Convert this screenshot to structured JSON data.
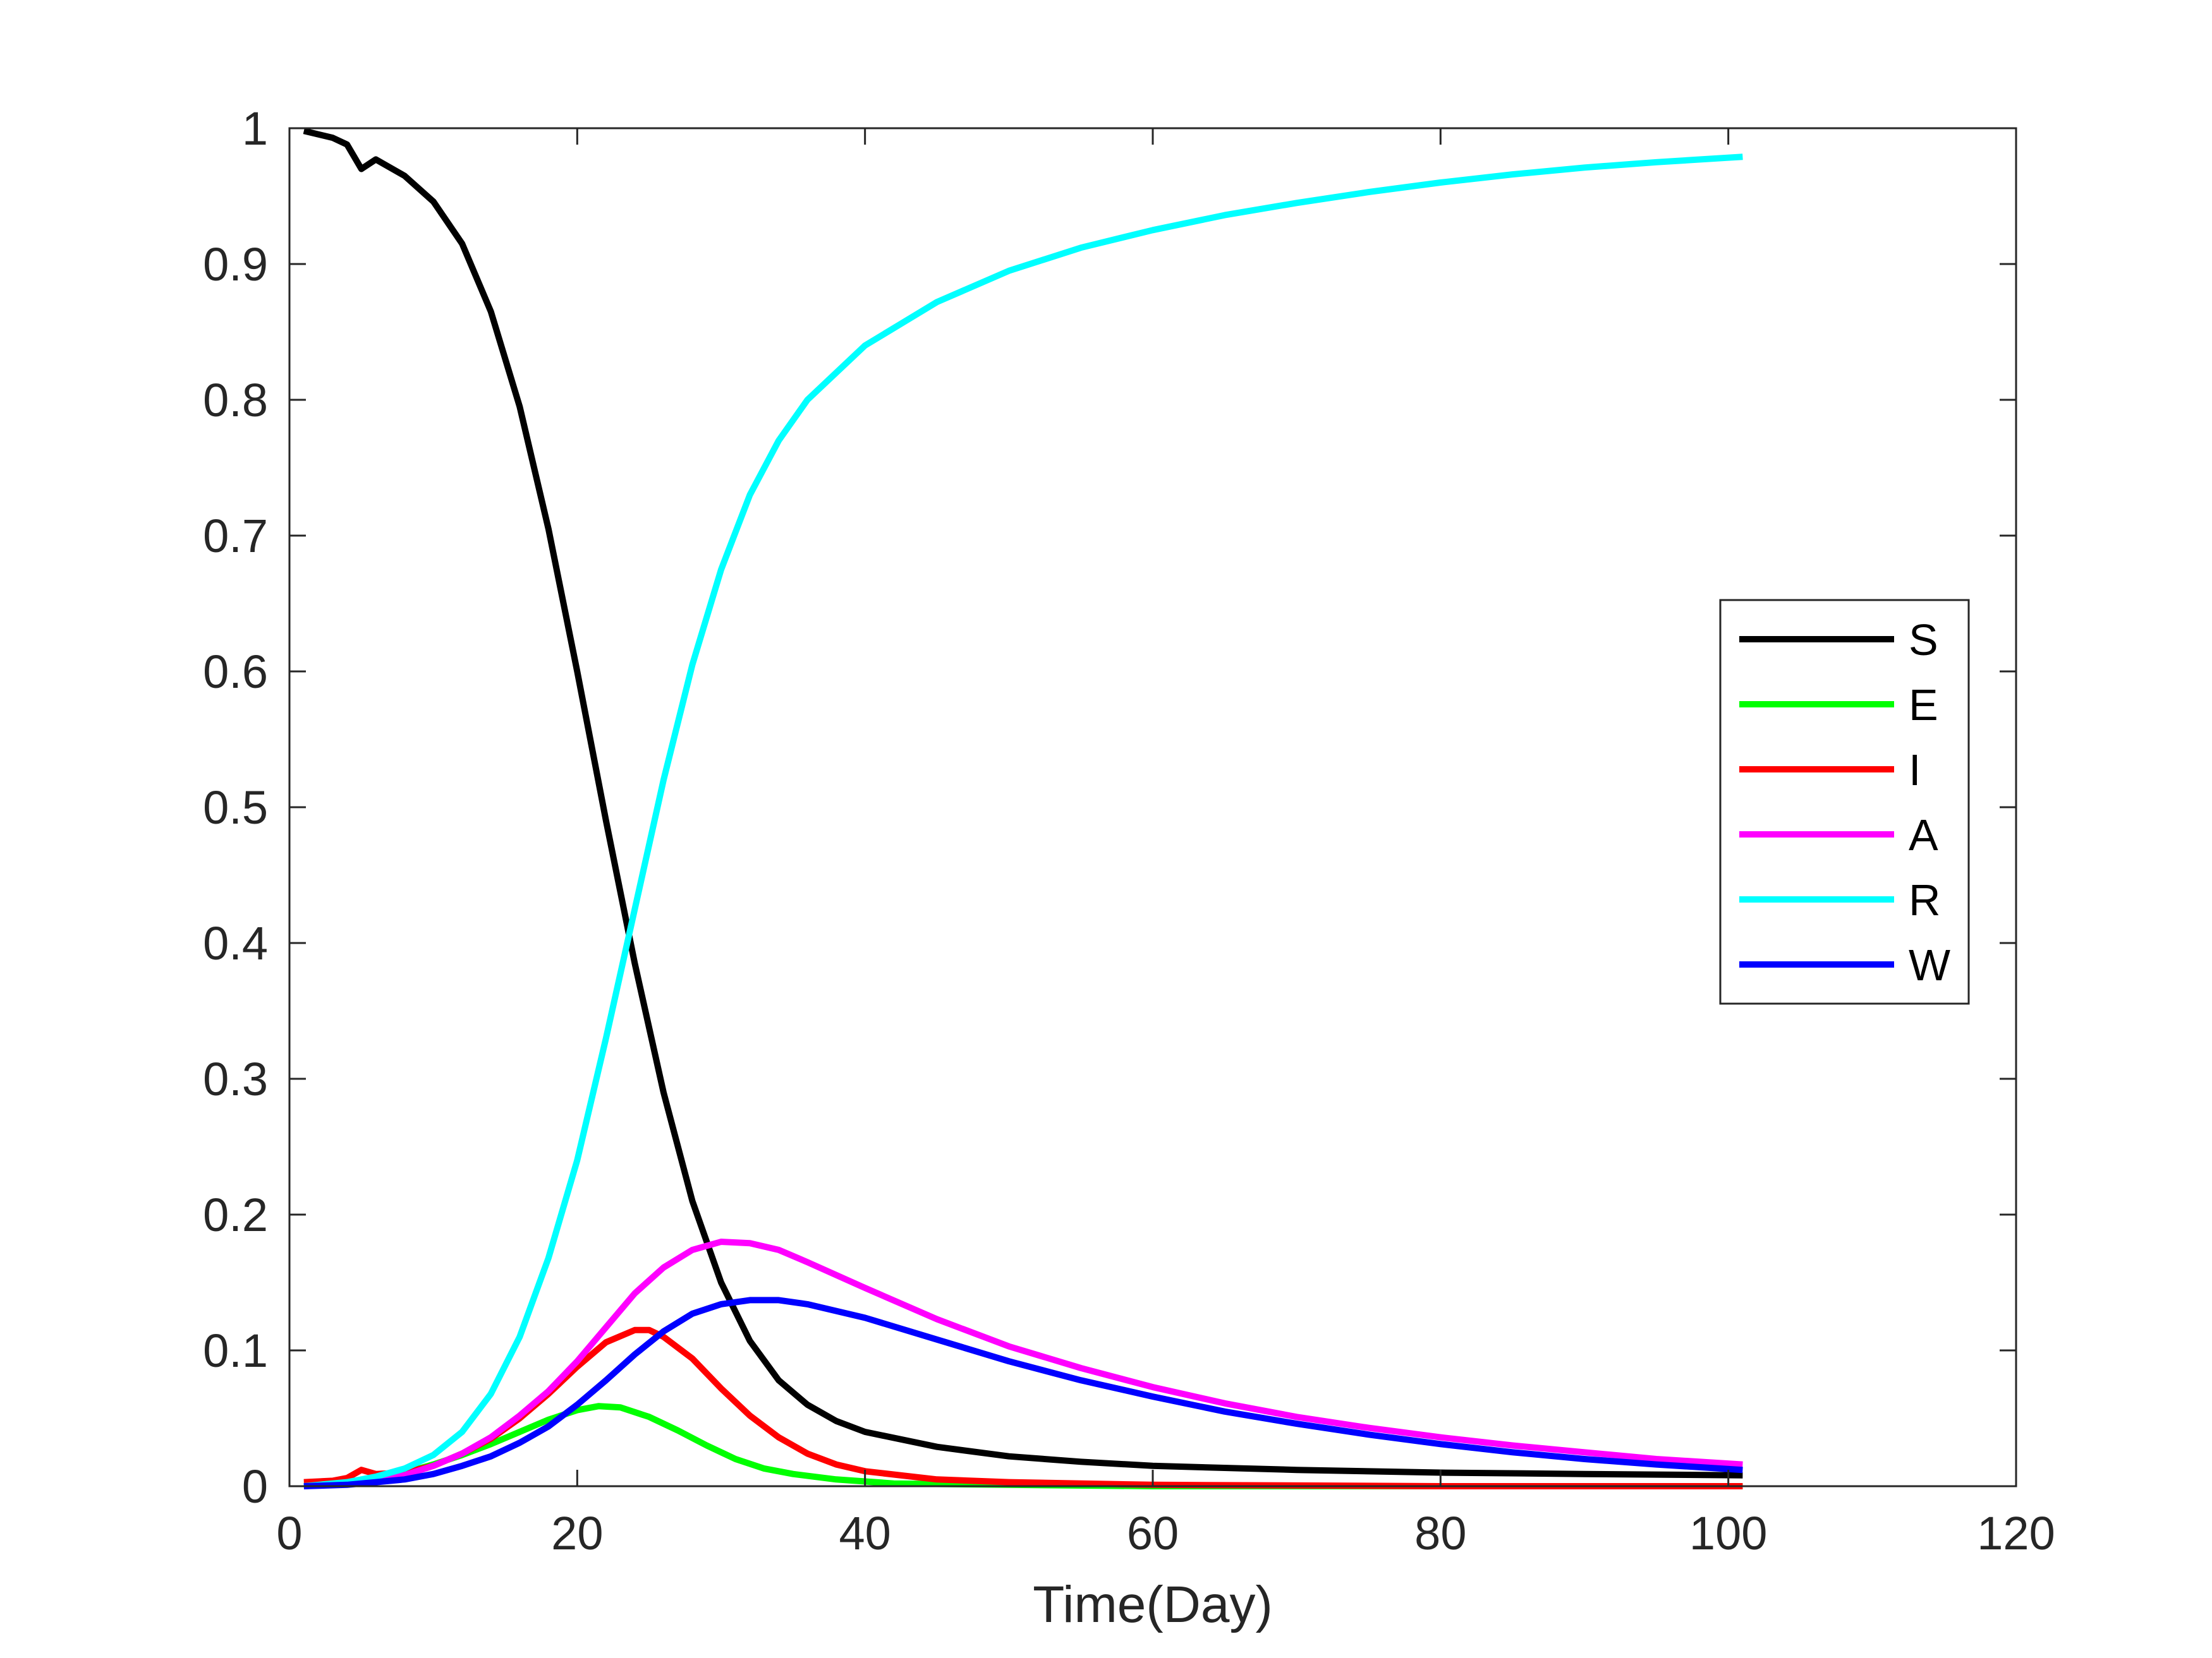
{
  "chart_data": {
    "type": "line",
    "title": "",
    "xlabel": "Time(Day)",
    "ylabel": "",
    "xlim": [
      0,
      120
    ],
    "ylim": [
      0,
      1
    ],
    "xticks": [
      0,
      20,
      40,
      60,
      80,
      100,
      120
    ],
    "yticks": [
      0,
      0.1,
      0.2,
      0.3,
      0.4,
      0.5,
      0.6,
      0.7,
      0.8,
      0.9,
      1
    ],
    "x_tick_labels": [
      "0",
      "20",
      "40",
      "60",
      "80",
      "100",
      "120"
    ],
    "y_tick_labels": [
      "0",
      "0.1",
      "0.2",
      "0.3",
      "0.4",
      "0.5",
      "0.6",
      "0.7",
      "0.8",
      "0.9",
      "1"
    ],
    "grid": false,
    "legend_position": "right",
    "series": [
      {
        "name": "S",
        "color": "#000000",
        "points": [
          [
            1,
            0.998
          ],
          [
            3,
            0.993
          ],
          [
            4,
            0.988
          ],
          [
            5,
            0.97
          ],
          [
            6,
            0.977
          ],
          [
            8,
            0.965
          ],
          [
            10,
            0.946
          ],
          [
            12,
            0.915
          ],
          [
            14,
            0.865
          ],
          [
            16,
            0.795
          ],
          [
            18,
            0.705
          ],
          [
            20,
            0.6
          ],
          [
            22,
            0.49
          ],
          [
            24,
            0.385
          ],
          [
            26,
            0.29
          ],
          [
            28,
            0.21
          ],
          [
            30,
            0.15
          ],
          [
            32,
            0.107
          ],
          [
            34,
            0.078
          ],
          [
            36,
            0.06
          ],
          [
            38,
            0.048
          ],
          [
            40,
            0.04
          ],
          [
            45,
            0.029
          ],
          [
            50,
            0.022
          ],
          [
            55,
            0.018
          ],
          [
            60,
            0.015
          ],
          [
            70,
            0.012
          ],
          [
            80,
            0.01
          ],
          [
            90,
            0.009
          ],
          [
            101,
            0.008
          ]
        ]
      },
      {
        "name": "E",
        "color": "#00ff00",
        "points": [
          [
            1,
            0.0
          ],
          [
            4,
            0.002
          ],
          [
            6,
            0.005
          ],
          [
            8,
            0.01
          ],
          [
            10,
            0.016
          ],
          [
            12,
            0.023
          ],
          [
            14,
            0.031
          ],
          [
            16,
            0.04
          ],
          [
            18,
            0.049
          ],
          [
            20,
            0.056
          ],
          [
            21.5,
            0.059
          ],
          [
            23,
            0.058
          ],
          [
            25,
            0.051
          ],
          [
            27,
            0.041
          ],
          [
            29,
            0.03
          ],
          [
            31,
            0.02
          ],
          [
            33,
            0.013
          ],
          [
            35,
            0.009
          ],
          [
            38,
            0.005
          ],
          [
            42,
            0.002
          ],
          [
            50,
            0.001
          ],
          [
            60,
            0.0
          ],
          [
            101,
            0.0
          ]
        ]
      },
      {
        "name": "I",
        "color": "#ff0000",
        "points": [
          [
            1,
            0.003
          ],
          [
            3,
            0.004
          ],
          [
            4,
            0.006
          ],
          [
            5,
            0.012
          ],
          [
            6,
            0.009
          ],
          [
            8,
            0.01
          ],
          [
            10,
            0.015
          ],
          [
            12,
            0.024
          ],
          [
            14,
            0.035
          ],
          [
            16,
            0.05
          ],
          [
            18,
            0.068
          ],
          [
            20,
            0.088
          ],
          [
            22,
            0.106
          ],
          [
            24,
            0.115
          ],
          [
            25,
            0.115
          ],
          [
            26,
            0.11
          ],
          [
            28,
            0.094
          ],
          [
            30,
            0.072
          ],
          [
            32,
            0.052
          ],
          [
            34,
            0.036
          ],
          [
            36,
            0.024
          ],
          [
            38,
            0.016
          ],
          [
            40,
            0.011
          ],
          [
            45,
            0.005
          ],
          [
            50,
            0.003
          ],
          [
            60,
            0.001
          ],
          [
            80,
            0.0
          ],
          [
            101,
            0.0
          ]
        ]
      },
      {
        "name": "A",
        "color": "#ff00ff",
        "points": [
          [
            1,
            0.0
          ],
          [
            4,
            0.002
          ],
          [
            6,
            0.004
          ],
          [
            8,
            0.008
          ],
          [
            10,
            0.015
          ],
          [
            12,
            0.024
          ],
          [
            14,
            0.036
          ],
          [
            16,
            0.052
          ],
          [
            18,
            0.07
          ],
          [
            20,
            0.092
          ],
          [
            22,
            0.117
          ],
          [
            24,
            0.142
          ],
          [
            26,
            0.161
          ],
          [
            28,
            0.174
          ],
          [
            30,
            0.18
          ],
          [
            32,
            0.179
          ],
          [
            34,
            0.174
          ],
          [
            36,
            0.165
          ],
          [
            40,
            0.146
          ],
          [
            45,
            0.123
          ],
          [
            50,
            0.103
          ],
          [
            55,
            0.087
          ],
          [
            60,
            0.073
          ],
          [
            65,
            0.061
          ],
          [
            70,
            0.051
          ],
          [
            75,
            0.043
          ],
          [
            80,
            0.036
          ],
          [
            85,
            0.03
          ],
          [
            90,
            0.025
          ],
          [
            95,
            0.02
          ],
          [
            101,
            0.016
          ]
        ]
      },
      {
        "name": "R",
        "color": "#00ffff",
        "points": [
          [
            1,
            0.0
          ],
          [
            4,
            0.003
          ],
          [
            6,
            0.007
          ],
          [
            8,
            0.013
          ],
          [
            10,
            0.023
          ],
          [
            12,
            0.04
          ],
          [
            14,
            0.068
          ],
          [
            16,
            0.11
          ],
          [
            18,
            0.168
          ],
          [
            20,
            0.24
          ],
          [
            22,
            0.33
          ],
          [
            24,
            0.425
          ],
          [
            26,
            0.52
          ],
          [
            28,
            0.605
          ],
          [
            30,
            0.675
          ],
          [
            32,
            0.73
          ],
          [
            34,
            0.77
          ],
          [
            36,
            0.8
          ],
          [
            40,
            0.84
          ],
          [
            45,
            0.872
          ],
          [
            50,
            0.895
          ],
          [
            55,
            0.912
          ],
          [
            60,
            0.925
          ],
          [
            65,
            0.936
          ],
          [
            70,
            0.945
          ],
          [
            75,
            0.953
          ],
          [
            80,
            0.96
          ],
          [
            85,
            0.966
          ],
          [
            90,
            0.971
          ],
          [
            95,
            0.975
          ],
          [
            101,
            0.979
          ]
        ]
      },
      {
        "name": "W",
        "color": "#0000ff",
        "points": [
          [
            1,
            0.0
          ],
          [
            4,
            0.001
          ],
          [
            6,
            0.003
          ],
          [
            8,
            0.005
          ],
          [
            10,
            0.009
          ],
          [
            12,
            0.015
          ],
          [
            14,
            0.022
          ],
          [
            16,
            0.032
          ],
          [
            18,
            0.044
          ],
          [
            20,
            0.06
          ],
          [
            22,
            0.078
          ],
          [
            24,
            0.097
          ],
          [
            26,
            0.114
          ],
          [
            28,
            0.127
          ],
          [
            30,
            0.134
          ],
          [
            32,
            0.137
          ],
          [
            34,
            0.137
          ],
          [
            36,
            0.134
          ],
          [
            40,
            0.124
          ],
          [
            45,
            0.108
          ],
          [
            50,
            0.092
          ],
          [
            55,
            0.078
          ],
          [
            60,
            0.066
          ],
          [
            65,
            0.055
          ],
          [
            70,
            0.046
          ],
          [
            75,
            0.038
          ],
          [
            80,
            0.031
          ],
          [
            85,
            0.025
          ],
          [
            90,
            0.02
          ],
          [
            95,
            0.016
          ],
          [
            101,
            0.012
          ]
        ]
      }
    ]
  }
}
